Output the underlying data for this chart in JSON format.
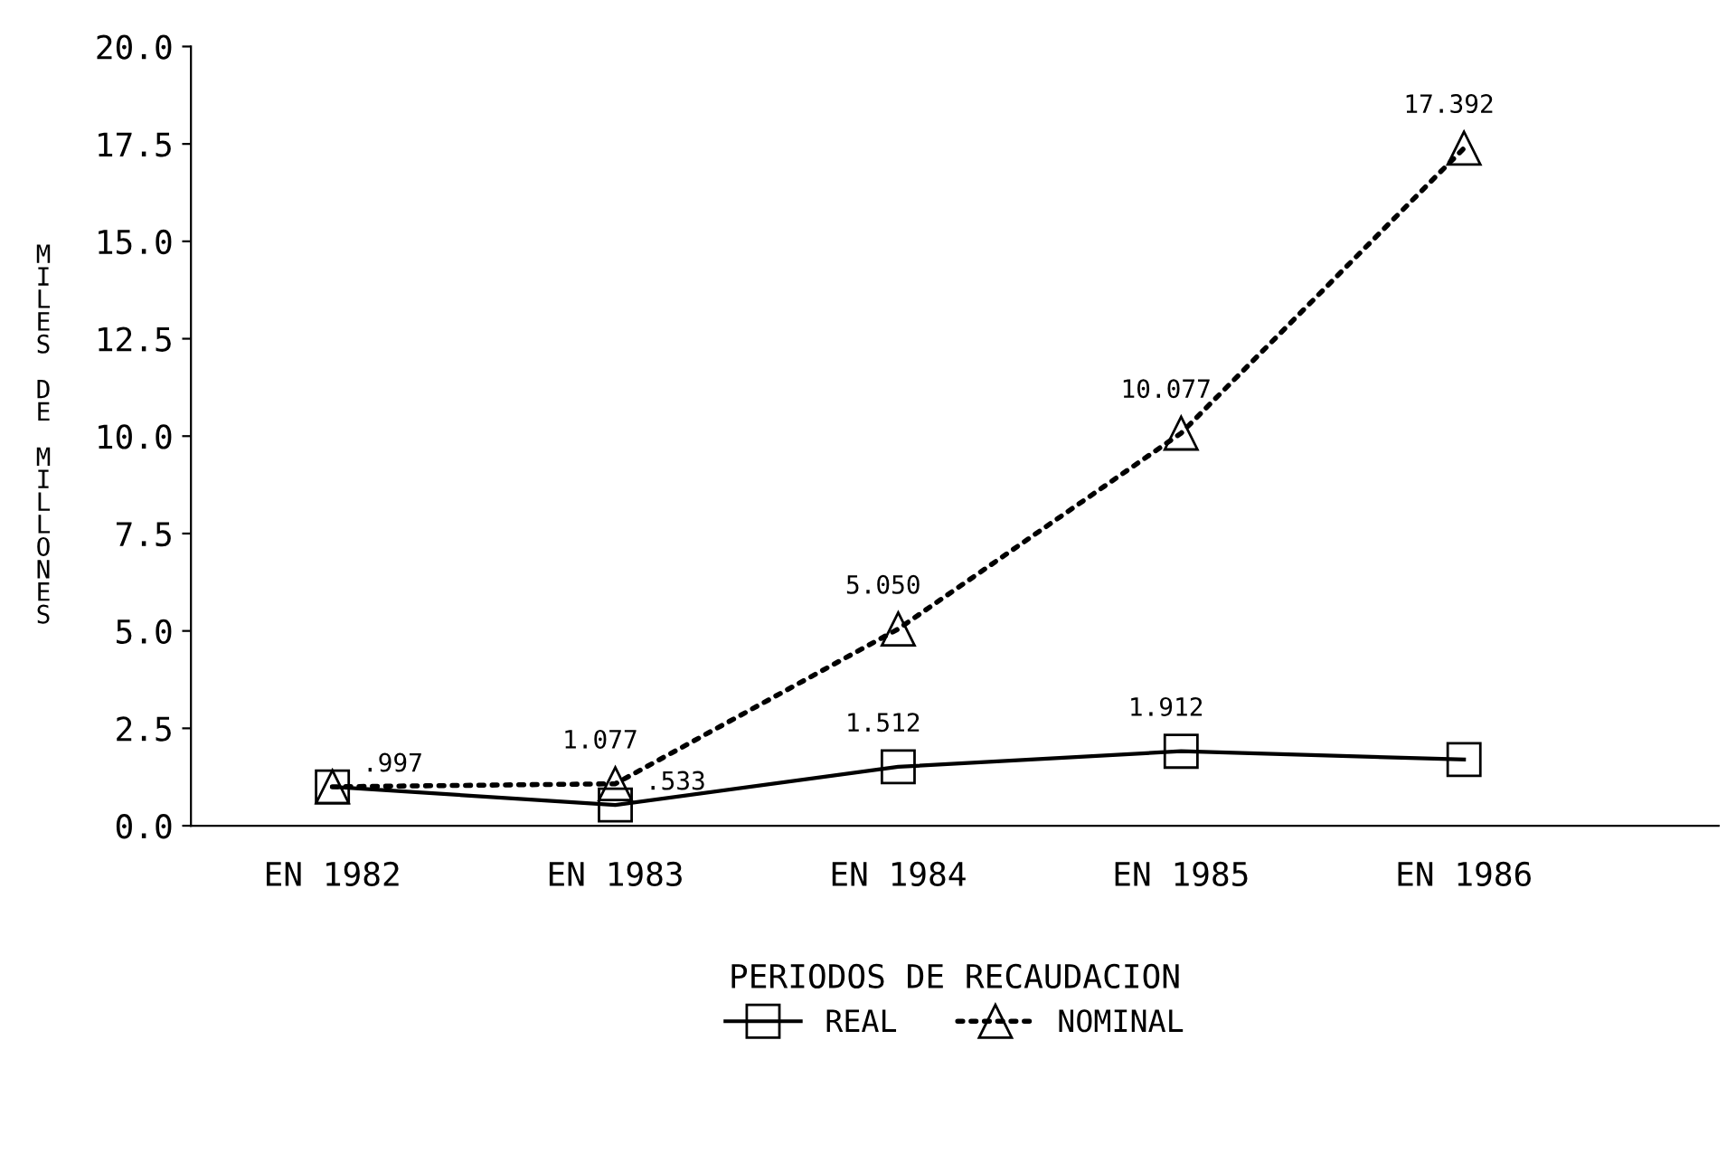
{
  "chart_data": {
    "type": "line",
    "xlabel": "PERIODOS DE RECAUDACION",
    "ylabel": "MILES DE MILLONES",
    "categories": [
      "EN 1982",
      "EN 1983",
      "EN 1984",
      "EN 1985",
      "EN 1986"
    ],
    "series": [
      {
        "name": "REAL",
        "color": "#000000",
        "values": [
          0.997,
          0.533,
          1.512,
          1.912,
          1.7
        ],
        "value_labels": [
          ".997",
          ".533",
          "1.512",
          "1.912",
          null
        ],
        "marker": "square",
        "line_style": "solid"
      },
      {
        "name": "NOMINAL",
        "color": "#000000",
        "values": [
          1.0,
          1.077,
          5.05,
          10.077,
          17.392
        ],
        "value_labels": [
          null,
          "1.077",
          "5.050",
          "10.077",
          "17.392"
        ],
        "marker": "triangle",
        "line_style": "dotted"
      }
    ],
    "ylim": [
      0,
      20
    ],
    "yticks": [
      {
        "value": 0,
        "label": "0.0"
      },
      {
        "value": 2.5,
        "label": "2.5"
      },
      {
        "value": 5,
        "label": "5.0"
      },
      {
        "value": 7.5,
        "label": "7.5"
      },
      {
        "value": 10,
        "label": "10.0"
      },
      {
        "value": 12.5,
        "label": "12.5"
      },
      {
        "value": 15,
        "label": "15.0"
      },
      {
        "value": 17.5,
        "label": "17.5"
      },
      {
        "value": 20,
        "label": "20.0"
      }
    ],
    "grid": false,
    "legend": "bottom"
  }
}
